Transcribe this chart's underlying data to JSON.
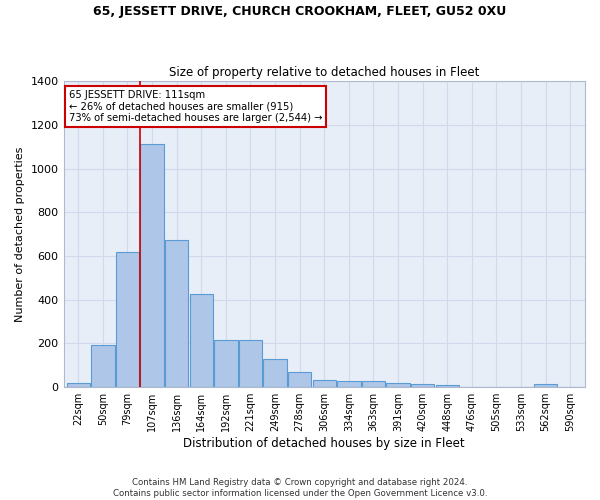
{
  "title": "65, JESSETT DRIVE, CHURCH CROOKHAM, FLEET, GU52 0XU",
  "subtitle": "Size of property relative to detached houses in Fleet",
  "xlabel": "Distribution of detached houses by size in Fleet",
  "ylabel": "Number of detached properties",
  "footer_line1": "Contains HM Land Registry data © Crown copyright and database right 2024.",
  "footer_line2": "Contains public sector information licensed under the Open Government Licence v3.0.",
  "bin_labels": [
    "22sqm",
    "50sqm",
    "79sqm",
    "107sqm",
    "136sqm",
    "164sqm",
    "192sqm",
    "221sqm",
    "249sqm",
    "278sqm",
    "306sqm",
    "334sqm",
    "363sqm",
    "391sqm",
    "420sqm",
    "448sqm",
    "476sqm",
    "505sqm",
    "533sqm",
    "562sqm",
    "590sqm"
  ],
  "bar_values": [
    20,
    195,
    620,
    1110,
    675,
    425,
    215,
    215,
    130,
    70,
    35,
    30,
    30,
    20,
    15,
    10,
    0,
    0,
    0,
    15,
    0
  ],
  "bar_color": "#aec6e8",
  "bar_edge_color": "#5b9bd5",
  "grid_color": "#d0daea",
  "background_color": "#e8eef8",
  "annotation_text": "65 JESSETT DRIVE: 111sqm\n← 26% of detached houses are smaller (915)\n73% of semi-detached houses are larger (2,544) →",
  "annotation_box_color": "#ffffff",
  "annotation_box_edge": "#cc0000",
  "vline_color": "#cc0000",
  "vline_x": 3.0,
  "ylim": [
    0,
    1400
  ],
  "yticks": [
    0,
    200,
    400,
    600,
    800,
    1000,
    1200,
    1400
  ]
}
